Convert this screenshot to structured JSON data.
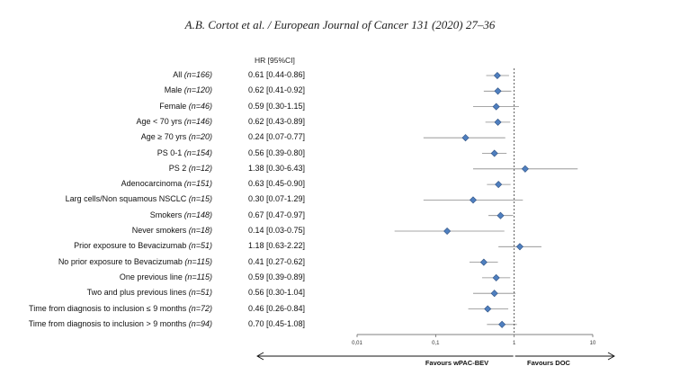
{
  "header": {
    "citation": "A.B. Cortot et al. / European Journal of Cancer 131 (2020) 27–36"
  },
  "chart_data": {
    "type": "forest",
    "column_title": "HR [95%CI]",
    "x_scale": "log",
    "xlim": [
      0.01,
      10
    ],
    "x_ticks": [
      0.01,
      0.1,
      1,
      10
    ],
    "x_tick_labels": [
      "0,01",
      "0,1",
      "1",
      "10"
    ],
    "reference_line": 1,
    "favours_left": "Favours wPAC-BEV",
    "favours_right": "Favours DOC",
    "marker_color": "#4f7fbf",
    "rows": [
      {
        "label": "All",
        "n": "(n=166)",
        "hr_text": "0.61 [0.44-0.86]",
        "hr": 0.61,
        "lo": 0.44,
        "hi": 0.86
      },
      {
        "label": "Male",
        "n": "(n=120)",
        "hr_text": "0.62 [0.41-0.92]",
        "hr": 0.62,
        "lo": 0.41,
        "hi": 0.92
      },
      {
        "label": "Female",
        "n": "(n=46)",
        "hr_text": "0.59 [0.30-1.15]",
        "hr": 0.59,
        "lo": 0.3,
        "hi": 1.15
      },
      {
        "label": "Age < 70 yrs",
        "n": "(n=146)",
        "hr_text": "0.62 [0.43-0.89]",
        "hr": 0.62,
        "lo": 0.43,
        "hi": 0.89
      },
      {
        "label": "Age ≥ 70 yrs",
        "n": "(n=20)",
        "hr_text": "0.24 [0.07-0.77]",
        "hr": 0.24,
        "lo": 0.07,
        "hi": 0.77
      },
      {
        "label": "PS 0-1",
        "n": "(n=154)",
        "hr_text": "0.56 [0.39-0.80]",
        "hr": 0.56,
        "lo": 0.39,
        "hi": 0.8
      },
      {
        "label": "PS 2",
        "n": "(n=12)",
        "hr_text": "1.38 [0.30-6.43]",
        "hr": 1.38,
        "lo": 0.3,
        "hi": 6.43
      },
      {
        "label": "Adenocarcinoma",
        "n": "(n=151)",
        "hr_text": "0.63 [0.45-0.90]",
        "hr": 0.63,
        "lo": 0.45,
        "hi": 0.9
      },
      {
        "label": "Larg cells/Non squamous NSCLC",
        "n": "(n=15)",
        "hr_text": "0.30 [0.07-1.29]",
        "hr": 0.3,
        "lo": 0.07,
        "hi": 1.29
      },
      {
        "label": "Smokers",
        "n": "(n=148)",
        "hr_text": "0.67 [0.47-0.97]",
        "hr": 0.67,
        "lo": 0.47,
        "hi": 0.97
      },
      {
        "label": "Never smokers",
        "n": "(n=18)",
        "hr_text": "0.14 [0.03-0.75]",
        "hr": 0.14,
        "lo": 0.03,
        "hi": 0.75
      },
      {
        "label": "Prior exposure to Bevacizumab",
        "n": "(n=51)",
        "hr_text": "1.18 [0.63-2.22]",
        "hr": 1.18,
        "lo": 0.63,
        "hi": 2.22
      },
      {
        "label": "No prior exposure to Bevacizumab",
        "n": "(n=115)",
        "hr_text": "0.41 [0.27-0.62]",
        "hr": 0.41,
        "lo": 0.27,
        "hi": 0.62
      },
      {
        "label": "One previous line",
        "n": "(n=115)",
        "hr_text": "0.59 [0.39-0.89]",
        "hr": 0.59,
        "lo": 0.39,
        "hi": 0.89
      },
      {
        "label": "Two and plus previous lines",
        "n": "(n=51)",
        "hr_text": "0.56 [0.30-1.04]",
        "hr": 0.56,
        "lo": 0.3,
        "hi": 1.04
      },
      {
        "label": "Time from diagnosis to inclusion ≤ 9 months",
        "n": "(n=72)",
        "hr_text": "0.46 [0.26-0.84]",
        "hr": 0.46,
        "lo": 0.26,
        "hi": 0.84
      },
      {
        "label": "Time from diagnosis to inclusion > 9 months",
        "n": "(n=94)",
        "hr_text": "0.70 [0.45-1.08]",
        "hr": 0.7,
        "lo": 0.45,
        "hi": 1.08
      }
    ]
  }
}
